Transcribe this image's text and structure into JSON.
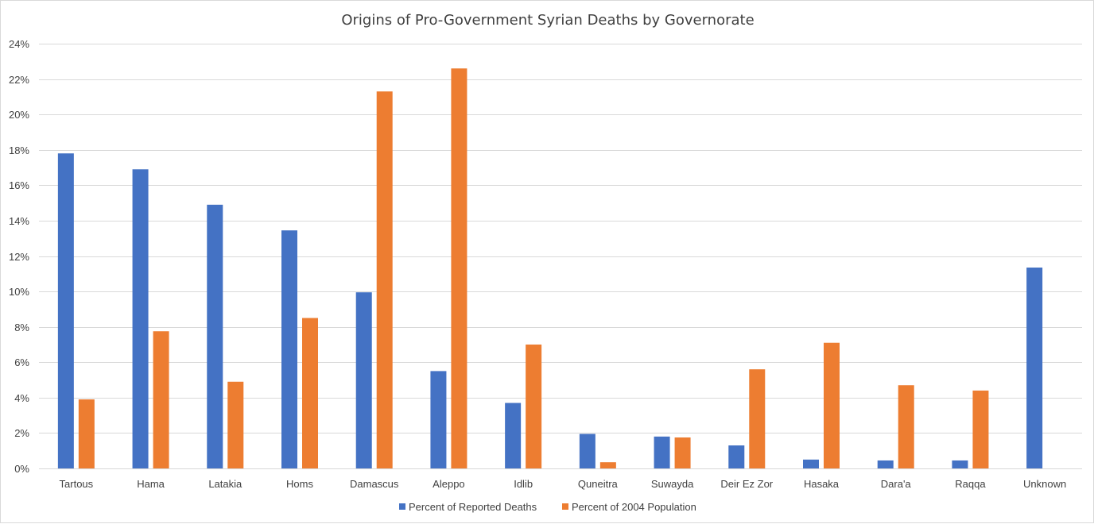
{
  "chart_data": {
    "type": "bar",
    "title": "Origins of Pro-Government  Syrian  Deaths by Governorate",
    "xlabel": "",
    "ylabel": "",
    "ylim": [
      0,
      24
    ],
    "y_ticks": [
      "0%",
      "2%",
      "4%",
      "6%",
      "8%",
      "10%",
      "12%",
      "14%",
      "16%",
      "18%",
      "20%",
      "22%",
      "24%"
    ],
    "y_tick_values": [
      0,
      2,
      4,
      6,
      8,
      10,
      12,
      14,
      16,
      18,
      20,
      22,
      24
    ],
    "grid": true,
    "legend_position": "bottom",
    "categories": [
      "Tartous",
      "Hama",
      "Latakia",
      "Homs",
      "Damascus",
      "Aleppo",
      "Idlib",
      "Quneitra",
      "Suwayda",
      "Deir Ez Zor",
      "Hasaka",
      "Dara'a",
      "Raqqa",
      "Unknown"
    ],
    "series": [
      {
        "name": "Percent of Reported Deaths",
        "color": "#4472c4",
        "values": [
          17.8,
          16.9,
          14.9,
          13.45,
          9.95,
          5.5,
          3.7,
          1.95,
          1.8,
          1.3,
          0.5,
          0.45,
          0.45,
          11.35
        ]
      },
      {
        "name": "Percent of 2004 Population",
        "color": "#ed7d31",
        "values": [
          3.9,
          7.75,
          4.9,
          8.5,
          21.3,
          22.6,
          7.0,
          0.35,
          1.75,
          5.6,
          7.1,
          4.7,
          4.4,
          null
        ]
      }
    ],
    "colors": {
      "gridline": "#d9d9d9",
      "axis": "#d9d9d9",
      "text": "#404040"
    }
  }
}
